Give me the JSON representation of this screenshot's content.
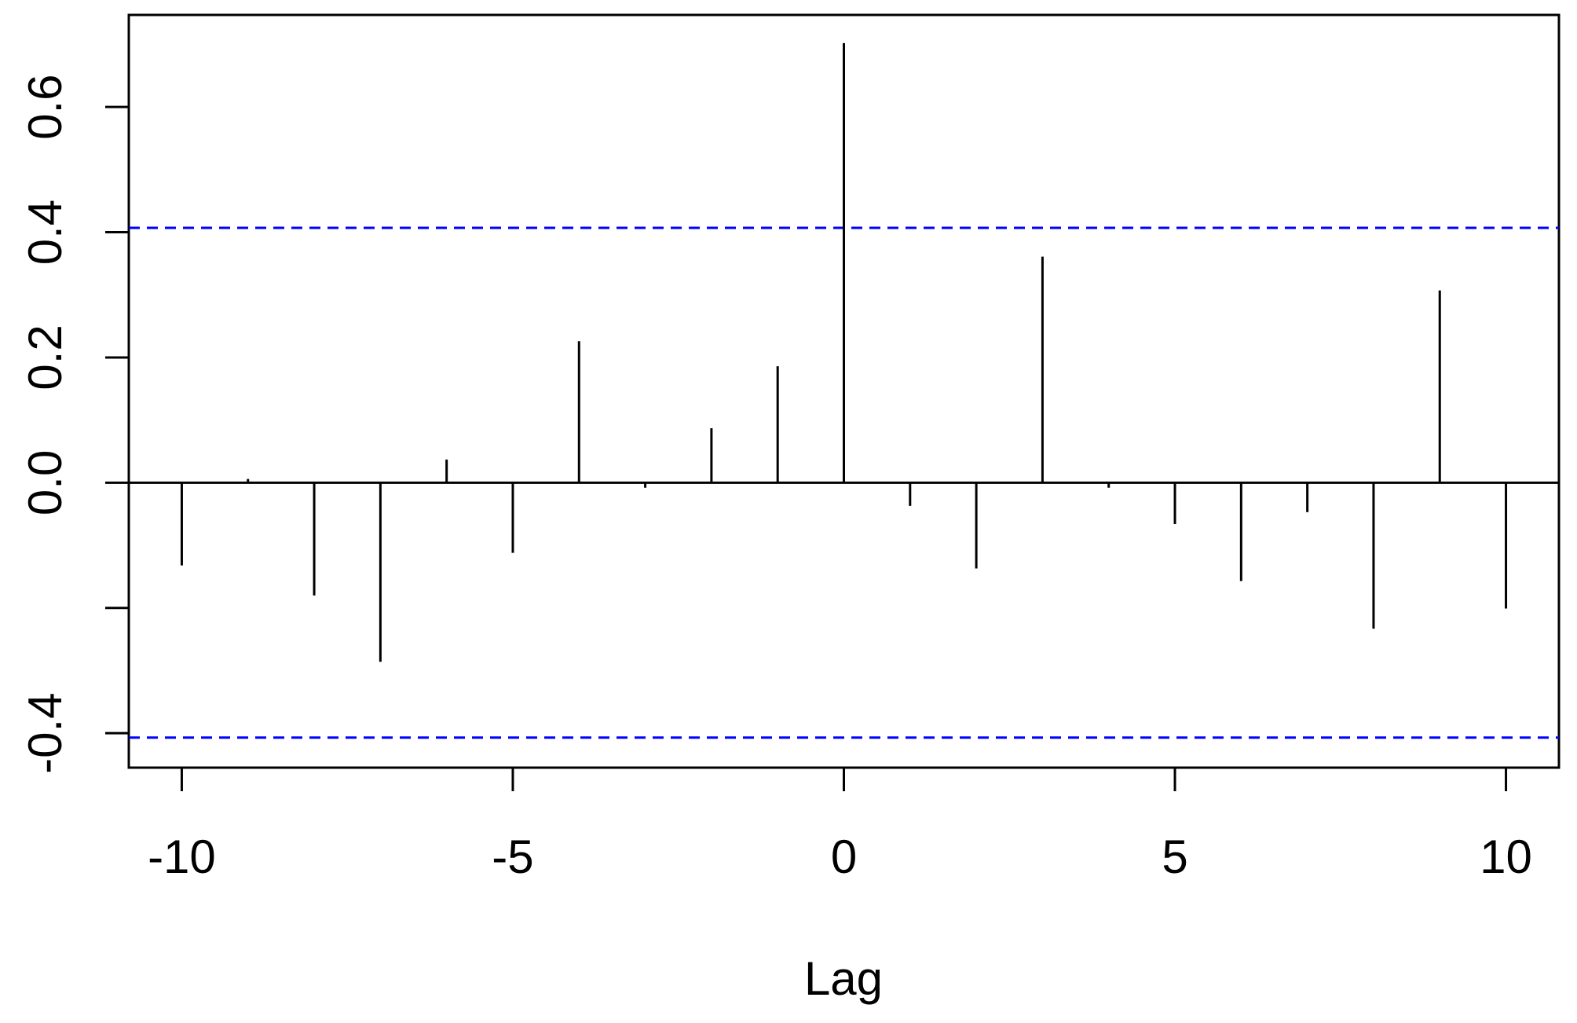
{
  "chart_data": {
    "type": "stem",
    "x_label": "Lag",
    "x": [
      -10,
      -9,
      -8,
      -7,
      -6,
      -5,
      -4,
      -3,
      -2,
      -1,
      0,
      1,
      2,
      3,
      4,
      5,
      6,
      7,
      8,
      9,
      10
    ],
    "values": [
      -0.132,
      0.006,
      -0.18,
      -0.286,
      0.037,
      -0.112,
      0.226,
      -0.008,
      0.087,
      0.186,
      0.702,
      -0.037,
      -0.137,
      0.361,
      -0.008,
      -0.066,
      -0.157,
      -0.047,
      -0.233,
      0.307,
      -0.201
    ],
    "color": "#000000",
    "confidence_lines": [
      0.407,
      -0.407
    ],
    "confidence_color": "#0000ff",
    "xlim": [
      -10.8,
      10.8
    ],
    "xticks": [
      -10,
      -5,
      0,
      5,
      10
    ],
    "ylim": [
      -0.455,
      0.747
    ],
    "yticks": [
      {
        "value": -0.4,
        "label": "-0.4"
      },
      {
        "value": -0.2,
        "label": null
      },
      {
        "value": 0,
        "label": "0.0"
      },
      0.2,
      0.4,
      0.6
    ]
  }
}
